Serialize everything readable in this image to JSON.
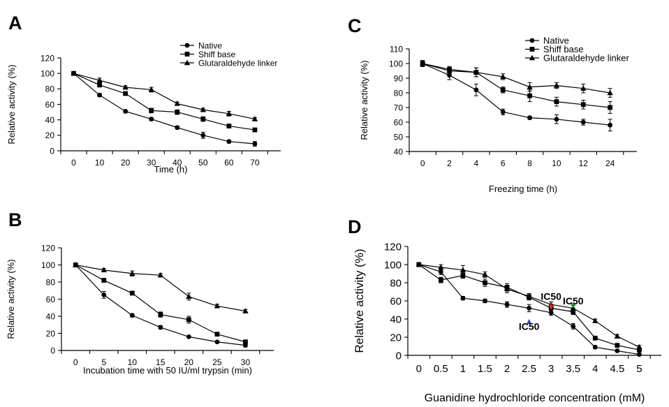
{
  "panels": [
    "A",
    "C",
    "B",
    "D"
  ],
  "chart_data": [
    {
      "panel": "A",
      "type": "line",
      "title": "",
      "xlabel": "Time (h)",
      "ylabel": "Relative activity (%)",
      "categories": [
        "0",
        "10",
        "20",
        "30",
        "40",
        "50",
        "60",
        "70"
      ],
      "ylim": [
        0,
        120
      ],
      "yticks": [
        0,
        20,
        40,
        60,
        80,
        100,
        120
      ],
      "legend_position": "top-right",
      "series": [
        {
          "name": "Native",
          "marker": "circle",
          "values": [
            100,
            72,
            51,
            41,
            30,
            20,
            12,
            9
          ],
          "errors": [
            2,
            2,
            2,
            2,
            2,
            4,
            2,
            3
          ]
        },
        {
          "name": "Shiff base",
          "marker": "square",
          "values": [
            100,
            85,
            74,
            52,
            50,
            41,
            32,
            27
          ],
          "errors": [
            2,
            2,
            2,
            3,
            3,
            3,
            2,
            2
          ]
        },
        {
          "name": "Glutaraldehyde linker",
          "marker": "triangle",
          "values": [
            100,
            91,
            82,
            79,
            61,
            53,
            48,
            41
          ],
          "errors": [
            2,
            3,
            2,
            3,
            2,
            2,
            3,
            2
          ]
        }
      ],
      "annotations": []
    },
    {
      "panel": "C",
      "type": "line",
      "title": "",
      "xlabel": "Freezing time (h)",
      "ylabel": "Relative activity (%)",
      "categories": [
        "0",
        "2",
        "4",
        "6",
        "8",
        "10",
        "12",
        "24"
      ],
      "ylim": [
        40,
        110
      ],
      "yticks": [
        40,
        50,
        60,
        70,
        80,
        90,
        100,
        110
      ],
      "legend_position": "top-right",
      "series": [
        {
          "name": "Native",
          "marker": "circle",
          "values": [
            100,
            92,
            82,
            67,
            63,
            62,
            60,
            58
          ],
          "errors": [
            2,
            3,
            4,
            2,
            1,
            3,
            2,
            4
          ]
        },
        {
          "name": "Shiff base",
          "marker": "square",
          "values": [
            100,
            96,
            94,
            82,
            78,
            74,
            72,
            70
          ],
          "errors": [
            2,
            2,
            3,
            2,
            4,
            3,
            3,
            4
          ]
        },
        {
          "name": "Glutaraldehyde linker",
          "marker": "triangle",
          "values": [
            100,
            95,
            94,
            91,
            84,
            85,
            83,
            80
          ],
          "errors": [
            2,
            2,
            3,
            2,
            3,
            2,
            3,
            3
          ]
        }
      ],
      "annotations": []
    },
    {
      "panel": "B",
      "type": "line",
      "title": "",
      "xlabel": "Incubation time with 50 IU/ml trypsin (min)",
      "ylabel": "Relative activity (%)",
      "categories": [
        "0",
        "5",
        "10",
        "15",
        "20",
        "25",
        "30"
      ],
      "ylim": [
        0,
        120
      ],
      "yticks": [
        0,
        20,
        40,
        60,
        80,
        100,
        120
      ],
      "legend_position": "none",
      "series": [
        {
          "name": "",
          "marker": "circle",
          "values": [
            100,
            65,
            41,
            27,
            16,
            10,
            6
          ],
          "errors": [
            2,
            4,
            2,
            2,
            1,
            1,
            2
          ]
        },
        {
          "name": "",
          "marker": "square",
          "values": [
            100,
            82,
            67,
            42,
            36,
            19,
            10
          ],
          "errors": [
            2,
            2,
            2,
            3,
            4,
            2,
            2
          ]
        },
        {
          "name": "",
          "marker": "triangle",
          "values": [
            100,
            94,
            90,
            88,
            63,
            52,
            46
          ],
          "errors": [
            2,
            2,
            3,
            2,
            4,
            2,
            2
          ]
        }
      ],
      "annotations": []
    },
    {
      "panel": "D",
      "type": "line",
      "title": "",
      "xlabel": "Guanidine hydrochloride concentration (mM)",
      "ylabel": "Relative activity (%)",
      "categories": [
        "0",
        "0.5",
        "1",
        "1.5",
        "2",
        "2.5",
        "3",
        "3.5",
        "4",
        "4.5",
        "5"
      ],
      "ylim": [
        0,
        120
      ],
      "yticks": [
        0,
        20,
        40,
        60,
        80,
        100,
        120
      ],
      "legend_position": "none",
      "series": [
        {
          "name": "",
          "marker": "circle",
          "values": [
            100,
            92,
            63,
            60,
            56,
            52,
            47,
            32,
            9,
            5,
            1
          ],
          "errors": [
            2,
            3,
            2,
            2,
            3,
            4,
            3,
            3,
            1,
            1,
            1
          ]
        },
        {
          "name": "",
          "marker": "square",
          "values": [
            100,
            83,
            88,
            80,
            75,
            64,
            52,
            48,
            19,
            11,
            6
          ],
          "errors": [
            2,
            3,
            3,
            4,
            4,
            3,
            4,
            3,
            2,
            2,
            2
          ]
        },
        {
          "name": "",
          "marker": "triangle",
          "values": [
            100,
            97,
            94,
            89,
            73,
            65,
            56,
            52,
            38,
            21,
            9
          ],
          "errors": [
            2,
            3,
            5,
            3,
            4,
            3,
            3,
            3,
            2,
            2,
            2
          ]
        }
      ],
      "annotations": [
        {
          "text": "IC50",
          "category": "3",
          "value": 61,
          "arrow_color": "#e8251f",
          "arrow_direction": "down",
          "arrow_tip_value": 50
        },
        {
          "text": "IC50",
          "category": "3.5",
          "value": 56,
          "arrow_color": "#1f9a2e",
          "arrow_direction": "down",
          "arrow_tip_value": 52
        },
        {
          "text": "IC50",
          "category": "2.5",
          "value": 28,
          "arrow_color": "#3a3fa8",
          "arrow_direction": "up",
          "arrow_tip_value": 40
        }
      ]
    }
  ]
}
